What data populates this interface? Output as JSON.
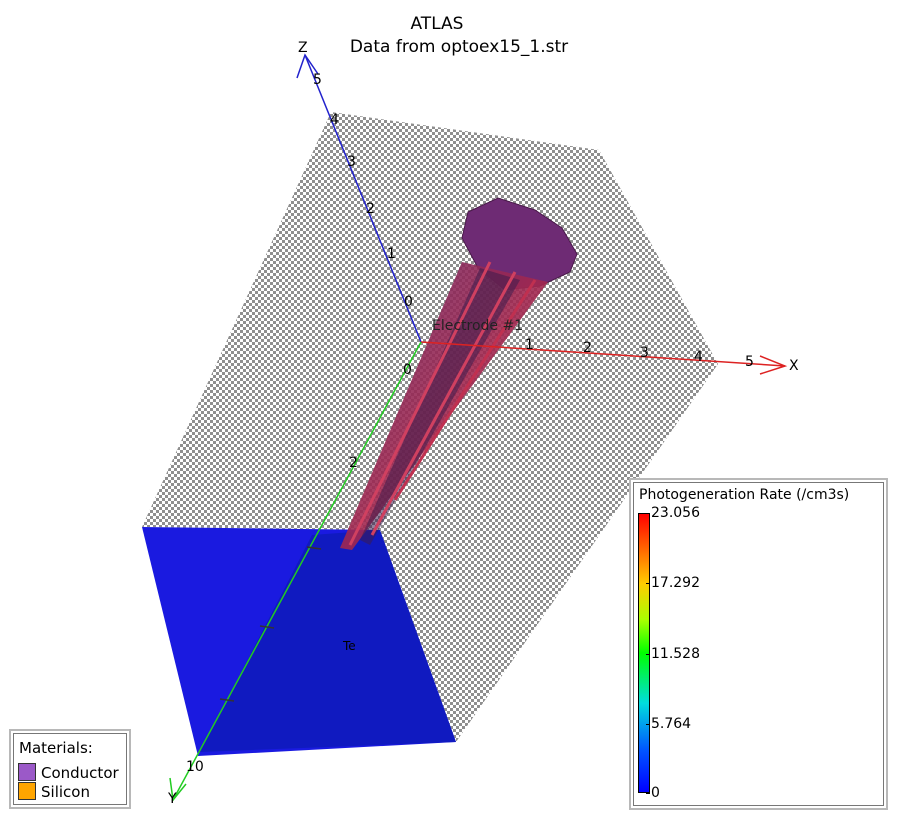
{
  "title": "ATLAS",
  "subtitle": "Data from optoex15_1.str",
  "axes": {
    "x": {
      "label": "X",
      "ticks": [
        "1",
        "2",
        "3",
        "4",
        "5"
      ]
    },
    "y": {
      "label": "Y",
      "ticks": [
        "0",
        "2",
        "10"
      ]
    },
    "z": {
      "label": "Z",
      "ticks": [
        "0",
        "1",
        "2",
        "3",
        "4",
        "5"
      ]
    }
  },
  "region_labels": {
    "electrode": "Electrode #1",
    "inner": "Te"
  },
  "materials_legend": {
    "title": "Materials:",
    "items": [
      {
        "label": "Conductor",
        "color": "#9b59c8"
      },
      {
        "label": "Silicon",
        "color": "#ffa500"
      }
    ]
  },
  "colorbar": {
    "title": "Photogeneration Rate (/cm3s)",
    "ticks": [
      "23.056",
      "17.292",
      "11.528",
      "5.764",
      "0"
    ],
    "min_color": "#0000ff",
    "max_color": "#ff0000"
  }
}
